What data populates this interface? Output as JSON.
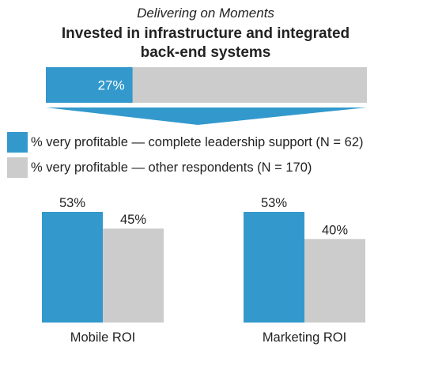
{
  "header": {
    "subtitle": "Delivering on Moments",
    "title_line1": "Invested in infrastructure and integrated",
    "title_line2": "back-end systems"
  },
  "colors": {
    "primary": "#3399cc",
    "secondary": "#cccccc"
  },
  "legend": [
    {
      "label": "% very profitable — complete leadership support (N = 62)",
      "color": "#3399cc"
    },
    {
      "label": "% very profitable — other respondents (N = 170)",
      "color": "#cccccc"
    }
  ],
  "chart_data": [
    {
      "type": "bar",
      "orientation": "horizontal",
      "value": 27,
      "label": "27%",
      "xlim": [
        0,
        100
      ]
    },
    {
      "type": "bar",
      "categories": [
        "Mobile ROI",
        "Marketing ROI"
      ],
      "series": [
        {
          "name": "% very profitable — complete leadership support (N = 62)",
          "values": [
            53,
            53
          ],
          "labels": [
            "53%",
            "53%"
          ]
        },
        {
          "name": "% very profitable — other respondents (N = 170)",
          "values": [
            45,
            40
          ],
          "labels": [
            "45%",
            "40%"
          ]
        }
      ],
      "ylim": [
        0,
        53
      ]
    }
  ]
}
